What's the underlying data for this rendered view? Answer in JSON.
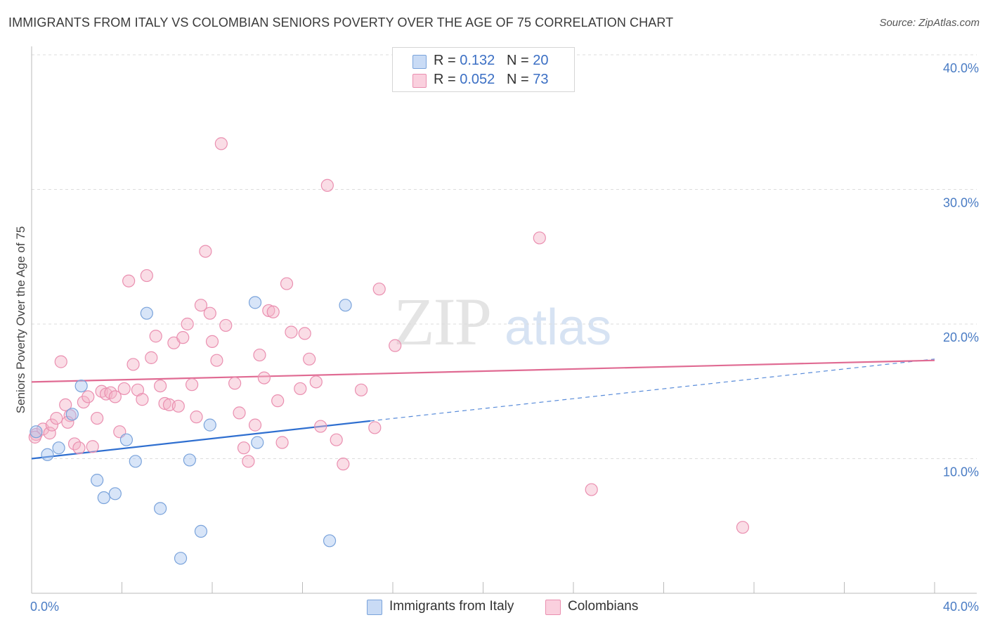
{
  "title": "IMMIGRANTS FROM ITALY VS COLOMBIAN SENIORS POVERTY OVER THE AGE OF 75 CORRELATION CHART",
  "source": "Source: ZipAtlas.com",
  "watermark": {
    "zip": "ZIP",
    "atlas": "atlas"
  },
  "legend": {
    "italy": {
      "r_label": "R = ",
      "r_value": "0.132",
      "n_label": "N = ",
      "n_value": "20",
      "color": "#a9c6ef"
    },
    "colombians": {
      "r_label": "R = ",
      "r_value": "0.052",
      "n_label": "N = ",
      "n_value": "73",
      "color": "#f5b3c8"
    }
  },
  "bottom_legend": {
    "italy": "Immigrants from Italy",
    "colombians": "Colombians"
  },
  "chart_data": {
    "type": "scatter",
    "ylabel": "Seniors Poverty Over the Age of 75",
    "xlim": [
      0,
      40
    ],
    "ylim": [
      0,
      40
    ],
    "x_tick_labels": [
      {
        "value": 0,
        "label": "0.0%"
      },
      {
        "value": 40,
        "label": "40.0%"
      }
    ],
    "y_tick_labels": [
      {
        "value": 10,
        "label": "10.0%"
      },
      {
        "value": 20,
        "label": "20.0%"
      },
      {
        "value": 30,
        "label": "30.0%"
      },
      {
        "value": 40,
        "label": "40.0%"
      }
    ],
    "grid": "horizontal dashed",
    "series": [
      {
        "name": "Immigrants from Italy",
        "color": "#a9c6ef",
        "edge": "#7aa3db",
        "trend": {
          "x0": 0,
          "y0": 10.0,
          "x1": 15.0,
          "y1": 12.8,
          "extend_to": 40,
          "extend_y": 17.4,
          "color": "#2f6fd0"
        },
        "points": [
          [
            0.2,
            12.0
          ],
          [
            0.7,
            10.3
          ],
          [
            1.2,
            10.8
          ],
          [
            1.8,
            13.3
          ],
          [
            2.2,
            15.4
          ],
          [
            2.9,
            8.4
          ],
          [
            3.2,
            7.1
          ],
          [
            3.7,
            7.4
          ],
          [
            4.2,
            11.4
          ],
          [
            4.6,
            9.8
          ],
          [
            5.1,
            20.8
          ],
          [
            5.7,
            6.3
          ],
          [
            6.6,
            2.6
          ],
          [
            7.0,
            9.9
          ],
          [
            7.5,
            4.6
          ],
          [
            7.9,
            12.5
          ],
          [
            9.9,
            21.6
          ],
          [
            10.0,
            11.2
          ],
          [
            13.2,
            3.9
          ],
          [
            13.9,
            21.4
          ]
        ]
      },
      {
        "name": "Colombians",
        "color": "#f5b3c8",
        "edge": "#ea8fb0",
        "trend": {
          "x0": 0,
          "y0": 15.7,
          "x1": 40,
          "y1": 17.3,
          "color": "#e06b93"
        },
        "points": [
          [
            0.2,
            11.8
          ],
          [
            0.5,
            12.2
          ],
          [
            0.8,
            11.9
          ],
          [
            0.9,
            12.5
          ],
          [
            1.1,
            13.0
          ],
          [
            1.3,
            17.2
          ],
          [
            1.5,
            14.0
          ],
          [
            1.7,
            13.2
          ],
          [
            1.9,
            11.1
          ],
          [
            2.1,
            10.8
          ],
          [
            2.3,
            14.2
          ],
          [
            2.5,
            14.6
          ],
          [
            2.7,
            10.9
          ],
          [
            2.9,
            13.0
          ],
          [
            3.1,
            15.0
          ],
          [
            3.3,
            14.8
          ],
          [
            3.5,
            14.9
          ],
          [
            3.7,
            14.6
          ],
          [
            3.9,
            12.0
          ],
          [
            4.1,
            15.2
          ],
          [
            4.3,
            23.2
          ],
          [
            4.5,
            17.0
          ],
          [
            4.7,
            15.1
          ],
          [
            4.9,
            14.4
          ],
          [
            5.1,
            23.6
          ],
          [
            5.3,
            17.5
          ],
          [
            5.5,
            19.1
          ],
          [
            5.7,
            15.4
          ],
          [
            5.9,
            14.1
          ],
          [
            6.1,
            14.0
          ],
          [
            6.3,
            18.6
          ],
          [
            6.5,
            13.9
          ],
          [
            6.7,
            19.0
          ],
          [
            6.9,
            20.0
          ],
          [
            7.1,
            15.5
          ],
          [
            7.3,
            13.1
          ],
          [
            7.5,
            21.4
          ],
          [
            7.7,
            25.4
          ],
          [
            7.9,
            20.8
          ],
          [
            8.0,
            18.7
          ],
          [
            8.2,
            17.3
          ],
          [
            8.4,
            33.4
          ],
          [
            8.6,
            19.9
          ],
          [
            9.0,
            15.6
          ],
          [
            9.2,
            13.4
          ],
          [
            9.4,
            10.8
          ],
          [
            9.6,
            9.8
          ],
          [
            9.9,
            12.5
          ],
          [
            10.1,
            17.7
          ],
          [
            10.3,
            16.0
          ],
          [
            10.5,
            21.0
          ],
          [
            10.7,
            20.9
          ],
          [
            10.9,
            14.3
          ],
          [
            11.1,
            11.2
          ],
          [
            11.3,
            23.0
          ],
          [
            11.5,
            19.4
          ],
          [
            11.9,
            15.2
          ],
          [
            12.1,
            19.3
          ],
          [
            12.3,
            17.4
          ],
          [
            12.6,
            15.7
          ],
          [
            12.8,
            12.4
          ],
          [
            13.1,
            30.3
          ],
          [
            13.5,
            11.4
          ],
          [
            13.8,
            9.6
          ],
          [
            14.6,
            15.1
          ],
          [
            15.2,
            12.3
          ],
          [
            15.4,
            22.6
          ],
          [
            16.1,
            18.4
          ],
          [
            22.5,
            26.4
          ],
          [
            24.8,
            7.7
          ],
          [
            31.5,
            4.9
          ],
          [
            0.15,
            11.6
          ],
          [
            1.6,
            12.7
          ]
        ]
      }
    ]
  }
}
